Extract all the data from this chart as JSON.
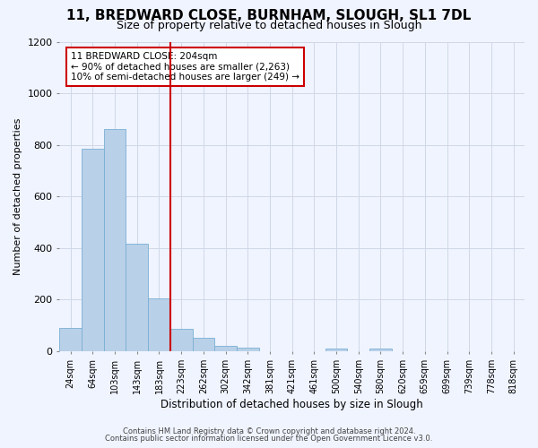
{
  "title1": "11, BREDWARD CLOSE, BURNHAM, SLOUGH, SL1 7DL",
  "title2": "Size of property relative to detached houses in Slough",
  "xlabel": "Distribution of detached houses by size in Slough",
  "ylabel": "Number of detached properties",
  "bar_labels": [
    "24sqm",
    "64sqm",
    "103sqm",
    "143sqm",
    "183sqm",
    "223sqm",
    "262sqm",
    "302sqm",
    "342sqm",
    "381sqm",
    "421sqm",
    "461sqm",
    "500sqm",
    "540sqm",
    "580sqm",
    "620sqm",
    "659sqm",
    "699sqm",
    "739sqm",
    "778sqm",
    "818sqm"
  ],
  "bar_values": [
    90,
    785,
    860,
    415,
    205,
    85,
    53,
    22,
    15,
    0,
    0,
    0,
    10,
    0,
    10,
    0,
    0,
    0,
    0,
    0,
    0
  ],
  "bar_color": "#b8d0e8",
  "bar_edge_color": "#7aafd4",
  "vline_x": 4.5,
  "vline_color": "#cc0000",
  "ylim": [
    0,
    1200
  ],
  "yticks": [
    0,
    200,
    400,
    600,
    800,
    1000,
    1200
  ],
  "annotation_text": "11 BREDWARD CLOSE: 204sqm\n← 90% of detached houses are smaller (2,263)\n10% of semi-detached houses are larger (249) →",
  "annotation_box_color": "#ffffff",
  "annotation_box_edge": "#cc0000",
  "footer1": "Contains HM Land Registry data © Crown copyright and database right 2024.",
  "footer2": "Contains public sector information licensed under the Open Government Licence v3.0.",
  "background_color": "#f0f4ff",
  "grid_color": "#d0d8e8",
  "title1_fontsize": 11,
  "title2_fontsize": 9,
  "ylabel_fontsize": 8,
  "xlabel_fontsize": 8.5,
  "tick_fontsize": 7,
  "ytick_fontsize": 8,
  "footer_fontsize": 6,
  "annot_fontsize": 7.5
}
